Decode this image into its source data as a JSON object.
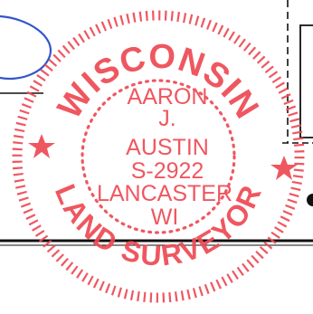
{
  "seal": {
    "top_arc": "WISCONSIN",
    "bottom_arc": "LAND SURVEYOR",
    "center_lines": [
      "AARON",
      "J.",
      "AUSTIN",
      "S-2922",
      "LANCASTER",
      "WI"
    ],
    "ink_color": "#ee4b55"
  },
  "markup": {
    "pen_color": "#3355cc",
    "line_color": "#111111"
  }
}
